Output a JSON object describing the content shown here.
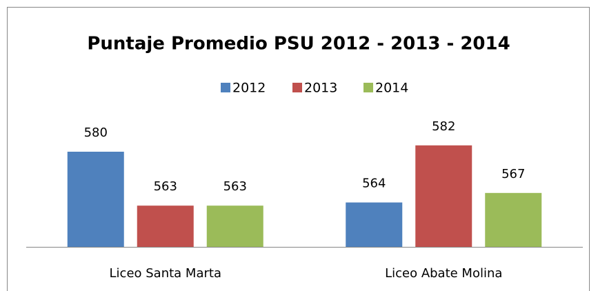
{
  "chart_data": {
    "type": "bar",
    "title": "Puntaje Promedio PSU 2012 - 2013 - 2014",
    "categories": [
      "Liceo Santa Marta",
      "Liceo Abate Molina"
    ],
    "series": [
      {
        "name": "2012",
        "color": "#4f81bd",
        "values": [
          580,
          564
        ]
      },
      {
        "name": "2013",
        "color": "#c0504d",
        "values": [
          563,
          582
        ]
      },
      {
        "name": "2014",
        "color": "#9bbb59",
        "values": [
          563,
          567
        ]
      }
    ],
    "ylim": [
      550,
      590
    ],
    "legend": "top"
  }
}
